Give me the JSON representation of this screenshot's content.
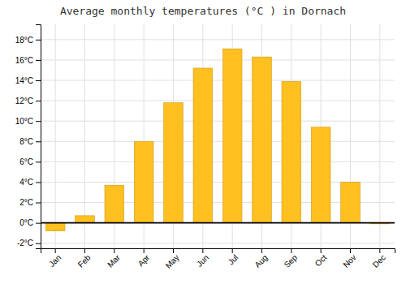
{
  "chart_data": {
    "type": "bar",
    "title": "Average monthly temperatures (°C ) in Dornach",
    "categories": [
      "Jan",
      "Feb",
      "Mar",
      "Apr",
      "May",
      "Jun",
      "Jul",
      "Aug",
      "Sep",
      "Oct",
      "Nov",
      "Dec"
    ],
    "values": [
      -0.8,
      0.7,
      3.7,
      8.0,
      11.8,
      15.2,
      17.1,
      16.3,
      13.9,
      9.4,
      4.0,
      -0.1
    ],
    "color": "#FFC020",
    "ylim": [
      -2.5,
      19.5
    ],
    "yticks": [
      {
        "value": -2,
        "label": "-2°C"
      },
      {
        "value": 0,
        "label": "0°C"
      },
      {
        "value": 2,
        "label": "2°C"
      },
      {
        "value": 4,
        "label": "4°C"
      },
      {
        "value": 6,
        "label": "6°C"
      },
      {
        "value": 8,
        "label": "8°C"
      },
      {
        "value": 10,
        "label": "10°C"
      },
      {
        "value": 12,
        "label": "12°C"
      },
      {
        "value": 14,
        "label": "14°C"
      },
      {
        "value": 16,
        "label": "16°C"
      },
      {
        "value": 18,
        "label": "18°C"
      }
    ],
    "grid": true
  }
}
